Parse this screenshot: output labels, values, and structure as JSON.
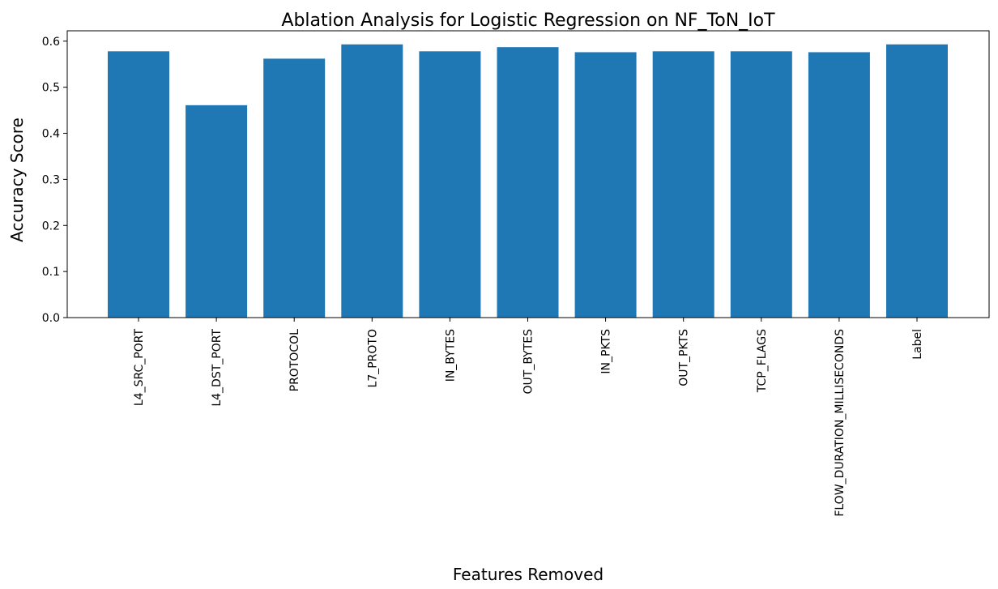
{
  "chart_data": {
    "type": "bar",
    "title": "Ablation Analysis for Logistic Regression on NF_ToN_IoT",
    "xlabel": "Features Removed",
    "ylabel": "Accuracy Score",
    "categories": [
      "L4_SRC_PORT",
      "L4_DST_PORT",
      "PROTOCOL",
      "L7_PROTO",
      "IN_BYTES",
      "OUT_BYTES",
      "IN_PKTS",
      "OUT_PKTS",
      "TCP_FLAGS",
      "FLOW_DURATION_MILLISECONDS",
      "Label"
    ],
    "values": [
      0.578,
      0.461,
      0.562,
      0.593,
      0.578,
      0.587,
      0.576,
      0.578,
      0.578,
      0.576,
      0.593
    ],
    "ylim": [
      0,
      0.6225
    ],
    "yticks": [
      "0.0",
      "0.1",
      "0.2",
      "0.3",
      "0.4",
      "0.5",
      "0.6"
    ],
    "grid": false,
    "legend": "none",
    "bar_color": "#1f77b4"
  }
}
